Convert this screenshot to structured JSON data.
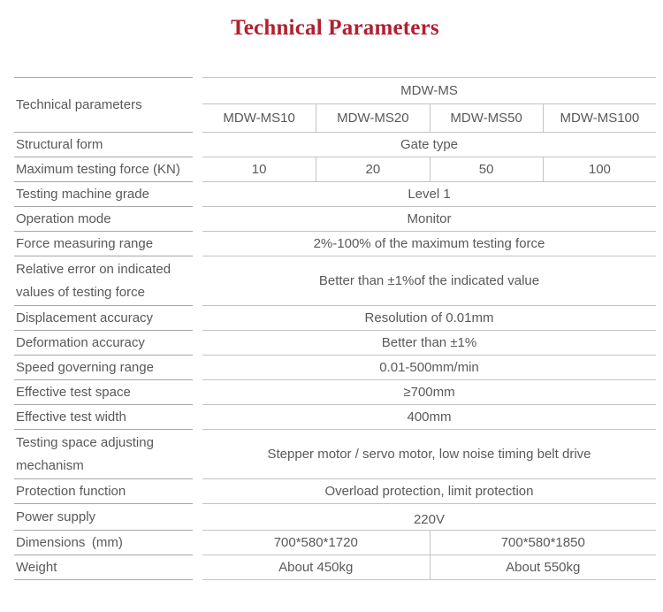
{
  "title": "Technical Parameters",
  "colors": {
    "title": "#b21f30",
    "text": "#58595b",
    "rule": "#a6a6a6",
    "grid": "#c3c3c3"
  },
  "table": {
    "header_label": "Technical parameters",
    "series_label": "MDW-MS",
    "models": [
      "MDW-MS10",
      "MDW-MS20",
      "MDW-MS50",
      "MDW-MS100"
    ],
    "rows": [
      {
        "label": "Structural form",
        "value": "Gate type"
      },
      {
        "label": "Maximum testing force (KN)",
        "values": [
          "10",
          "20",
          "50",
          "100"
        ]
      },
      {
        "label": "Testing machine grade",
        "value": "Level 1"
      },
      {
        "label": "Operation mode",
        "value": "Monitor"
      },
      {
        "label": "Force measuring range",
        "value": "2%-100% of the maximum testing force"
      },
      {
        "label": "Relative error on indicated values of testing force",
        "value": "Better than ±1%of the indicated value",
        "tall": true
      },
      {
        "label": "Displacement accuracy",
        "value": "Resolution of 0.01mm"
      },
      {
        "label": "Deformation accuracy",
        "value": "Better than ±1%"
      },
      {
        "label": "Speed governing range",
        "value": "0.01-500mm/min"
      },
      {
        "label": "Effective test space",
        "value": "≥700mm"
      },
      {
        "label": "Effective test width",
        "value": "400mm"
      },
      {
        "label": "Testing space adjusting mechanism",
        "value": "Stepper motor / servo motor, low noise timing belt drive",
        "tall": true
      },
      {
        "label": "Protection function",
        "value": "Overload protection, limit protection"
      },
      {
        "label": "Power supply",
        "value": "220V",
        "low": true
      },
      {
        "label": "Dimensions (mm)",
        "values": [
          "700*580*1720",
          "700*580*1850"
        ]
      },
      {
        "label": "Weight",
        "values": [
          "About 450kg",
          "About 550kg"
        ]
      }
    ]
  }
}
